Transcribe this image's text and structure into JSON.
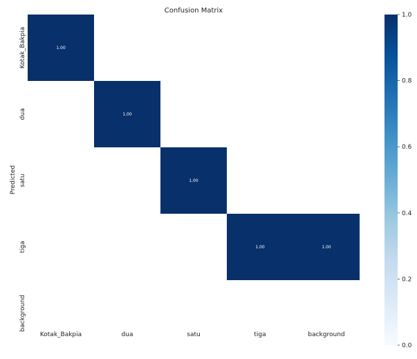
{
  "chart_data": {
    "type": "heatmap",
    "title": "Confusion Matrix",
    "xlabel": "",
    "ylabel": "Predicted",
    "x_categories": [
      "Kotak_Bakpia",
      "dua",
      "satu",
      "tiga",
      "background"
    ],
    "y_categories": [
      "Kotak_Bakpia",
      "dua",
      "satu",
      "tiga",
      "background"
    ],
    "values": [
      [
        1.0,
        null,
        null,
        null,
        null
      ],
      [
        null,
        1.0,
        null,
        null,
        null
      ],
      [
        null,
        null,
        1.0,
        null,
        null
      ],
      [
        null,
        null,
        null,
        1.0,
        1.0
      ],
      [
        null,
        null,
        null,
        null,
        null
      ]
    ],
    "value_format": "0.00",
    "colormap": "Blues",
    "colorbar": {
      "range": [
        0.0,
        1.0
      ],
      "ticks": [
        "0.0",
        "0.2",
        "0.4",
        "0.6",
        "0.8",
        "1.0"
      ]
    },
    "cell_color": "#08306b",
    "annotation_color": "#ffffff",
    "grid": false
  }
}
